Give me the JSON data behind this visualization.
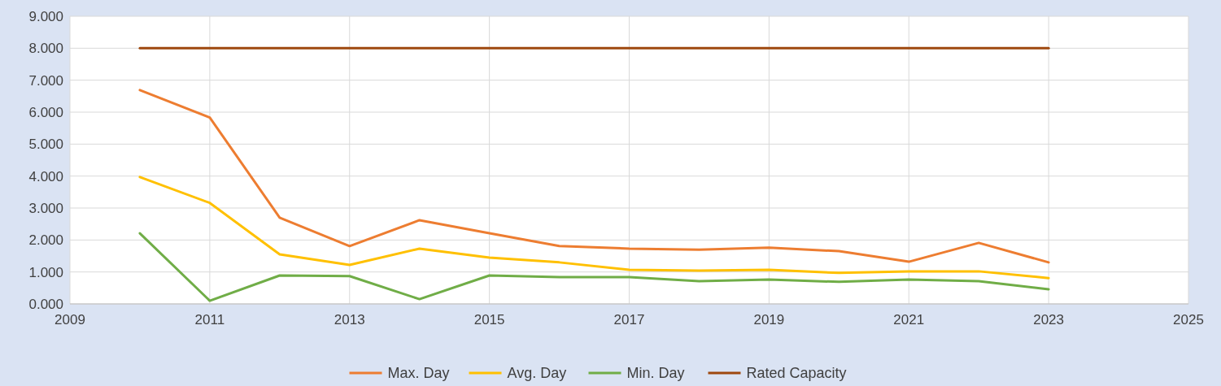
{
  "chart_data": {
    "type": "line",
    "x": [
      2010,
      2011,
      2012,
      2013,
      2014,
      2015,
      2016,
      2017,
      2018,
      2019,
      2020,
      2021,
      2022,
      2023
    ],
    "series": [
      {
        "name": "Max. Day",
        "color": "#ed7d31",
        "values": [
          6.69,
          5.83,
          2.7,
          1.81,
          2.62,
          2.21,
          1.81,
          1.73,
          1.7,
          1.76,
          1.65,
          1.32,
          1.91,
          1.3
        ]
      },
      {
        "name": "Avg. Day",
        "color": "#ffc000",
        "values": [
          3.97,
          3.16,
          1.55,
          1.22,
          1.73,
          1.45,
          1.3,
          1.07,
          1.04,
          1.07,
          0.97,
          1.02,
          1.02,
          0.81
        ]
      },
      {
        "name": "Min. Day",
        "color": "#70ad47",
        "values": [
          2.21,
          0.1,
          0.89,
          0.87,
          0.15,
          0.89,
          0.84,
          0.84,
          0.71,
          0.76,
          0.69,
          0.76,
          0.71,
          0.46
        ]
      },
      {
        "name": "Rated Capacity",
        "color": "#9e480e",
        "values": [
          8,
          8,
          8,
          8,
          8,
          8,
          8,
          8,
          8,
          8,
          8,
          8,
          8,
          8
        ]
      }
    ],
    "xlim": [
      2009,
      2025
    ],
    "xticks": [
      2009,
      2011,
      2013,
      2015,
      2017,
      2019,
      2021,
      2023,
      2025
    ],
    "ylim": [
      0,
      9
    ],
    "yticks": [
      {
        "value": 0,
        "label": "0.000"
      },
      {
        "value": 1,
        "label": "1.000"
      },
      {
        "value": 2,
        "label": "2.000"
      },
      {
        "value": 3,
        "label": "3.000"
      },
      {
        "value": 4,
        "label": "4.000"
      },
      {
        "value": 5,
        "label": "5.000"
      },
      {
        "value": 6,
        "label": "6.000"
      },
      {
        "value": 7,
        "label": "7.000"
      },
      {
        "value": 8,
        "label": "8.000"
      },
      {
        "value": 9,
        "label": "9.000"
      }
    ],
    "grid": true,
    "legend": "bottom",
    "marker": "none",
    "line_style": "solid"
  }
}
